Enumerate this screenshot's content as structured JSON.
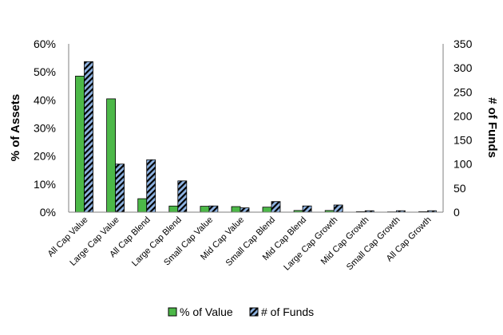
{
  "chart_data": {
    "type": "bar",
    "categories": [
      "All Cap Value",
      "Large Cap Value",
      "All Cap Blend",
      "Large Cap Blend",
      "Small Cap Value",
      "Mid Cap Value",
      "Small Cap Blend",
      "Mid Cap Blend",
      "Large Cap Growth",
      "Mid Cap Growth",
      "Small Cap Growth",
      "All Cap Growth"
    ],
    "series": [
      {
        "name": "% of Value",
        "axis": "left",
        "color": "#4CB848",
        "values": [
          48.5,
          40.4,
          4.8,
          2.2,
          2.1,
          2.0,
          1.8,
          0.6,
          0.6,
          0.2,
          0.1,
          0.2
        ]
      },
      {
        "name": "# of Funds",
        "axis": "right",
        "color": "#8FB4E3",
        "pattern": "hatched",
        "values": [
          313,
          100,
          109,
          65,
          13,
          9,
          22,
          13,
          15,
          3,
          3,
          3
        ]
      }
    ],
    "ylabel_left": "% of Assets",
    "ylabel_right": "# of Funds",
    "ylim_left": [
      0,
      60
    ],
    "ylim_right": [
      0,
      350
    ],
    "yticks_left": [
      "0%",
      "10%",
      "20%",
      "30%",
      "40%",
      "50%",
      "60%"
    ],
    "yticks_right": [
      "0",
      "50",
      "100",
      "150",
      "200",
      "250",
      "300",
      "350"
    ],
    "grid": false,
    "legend_position": "bottom"
  }
}
